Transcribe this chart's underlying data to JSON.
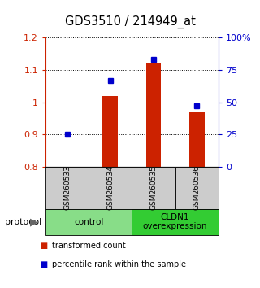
{
  "title": "GDS3510 / 214949_at",
  "samples": [
    "GSM260533",
    "GSM260534",
    "GSM260535",
    "GSM260536"
  ],
  "bar_values": [
    0.801,
    1.02,
    1.12,
    0.97
  ],
  "bar_baseline": 0.8,
  "bar_color": "#cc2200",
  "dot_values": [
    25,
    67,
    83,
    47
  ],
  "dot_color": "#0000cc",
  "ylim_left": [
    0.8,
    1.2
  ],
  "ylim_right": [
    0,
    100
  ],
  "yticks_left": [
    0.8,
    0.9,
    1.0,
    1.1,
    1.2
  ],
  "ytick_labels_left": [
    "0.8",
    "0.9",
    "1",
    "1.1",
    "1.2"
  ],
  "ytick_labels_right": [
    "0",
    "25",
    "50",
    "75",
    "100%"
  ],
  "yticks_right": [
    0,
    25,
    50,
    75,
    100
  ],
  "groups": [
    {
      "label": "control",
      "indices": [
        0,
        1
      ],
      "color": "#88dd88"
    },
    {
      "label": "CLDN1\noverexpression",
      "indices": [
        2,
        3
      ],
      "color": "#33cc33"
    }
  ],
  "protocol_label": "protocol",
  "legend_bar_label": "transformed count",
  "legend_dot_label": "percentile rank within the sample",
  "axis_color_left": "#cc2200",
  "axis_color_right": "#0000cc",
  "sample_box_color": "#cccccc",
  "bar_width": 0.35
}
